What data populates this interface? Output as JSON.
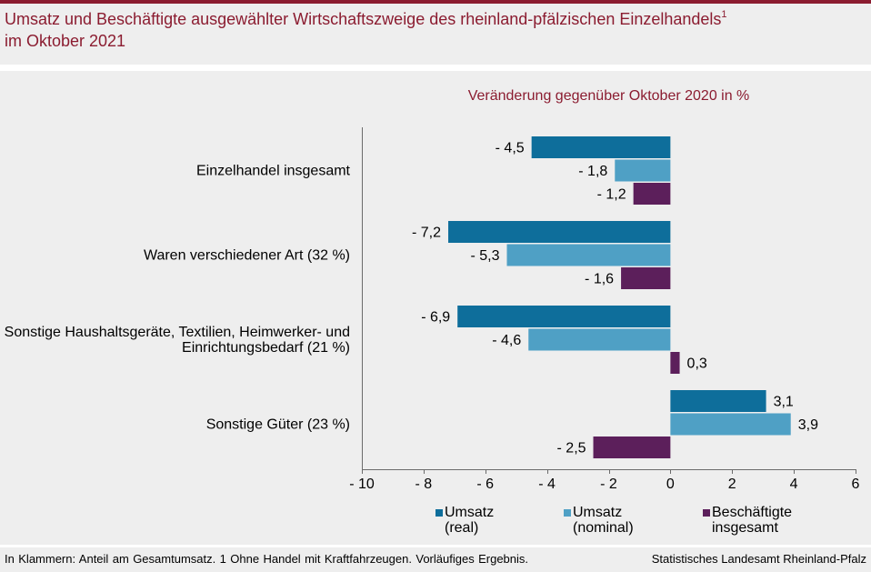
{
  "colors": {
    "accent": "#8b1c30",
    "panel_bg": "#eeeeee",
    "axis": "#6b6b6b"
  },
  "chart_data": {
    "type": "bar",
    "orientation": "horizontal",
    "title": "Umsatz und Beschäftigte ausgewählter Wirtschaftszweige des rheinland-pfälzischen Einzelhandels",
    "title_footnote_mark": "1",
    "title_line2": "im Oktober 2021",
    "subtitle": "Veränderung gegenüber Oktober 2020 in %",
    "xlabel": "",
    "ylabel": "",
    "categories": [
      "Einzelhandel insgesamt",
      "Waren verschiedener Art (32 %)",
      "Sonstige Haushaltsgeräte, Textilien, Heimwerker- und\nEinrichtungsbedarf (21 %)",
      "Sonstige Güter (23 %)"
    ],
    "series": [
      {
        "name": "Umsatz (real)",
        "color": "#0e6e9b",
        "values": [
          -4.5,
          -7.2,
          -6.9,
          3.1
        ],
        "labels": [
          "- 4,5",
          "- 7,2",
          "- 6,9",
          "3,1"
        ]
      },
      {
        "name": "Umsatz (nominal)",
        "color": "#4fa0c5",
        "values": [
          -1.8,
          -5.3,
          -4.6,
          3.9
        ],
        "labels": [
          "- 1,8",
          "- 5,3",
          "- 4,6",
          "3,9"
        ]
      },
      {
        "name": "Beschäftigte insgesamt",
        "color": "#5c1f5b",
        "values": [
          -1.2,
          -1.6,
          0.3,
          -2.5
        ],
        "labels": [
          "- 1,2",
          "- 1,6",
          "0,3",
          "- 2,5"
        ]
      }
    ],
    "xlim": [
      -10,
      6
    ],
    "xticks": [
      -10,
      -8,
      -6,
      -4,
      -2,
      0,
      2,
      4,
      6
    ],
    "xtick_labels": [
      "- 10",
      "- 8",
      "- 6",
      "- 4",
      "- 2",
      "0",
      "2",
      "4",
      "6"
    ],
    "grid": false,
    "legend_position": "bottom"
  },
  "footer": {
    "note": "In Klammern: Anteil am Gesamtumsatz. 1 Ohne Handel mit Kraftfahrzeugen. Vorläufiges Ergebnis.",
    "source": "Statistisches Landesamt Rheinland-Pfalz"
  }
}
